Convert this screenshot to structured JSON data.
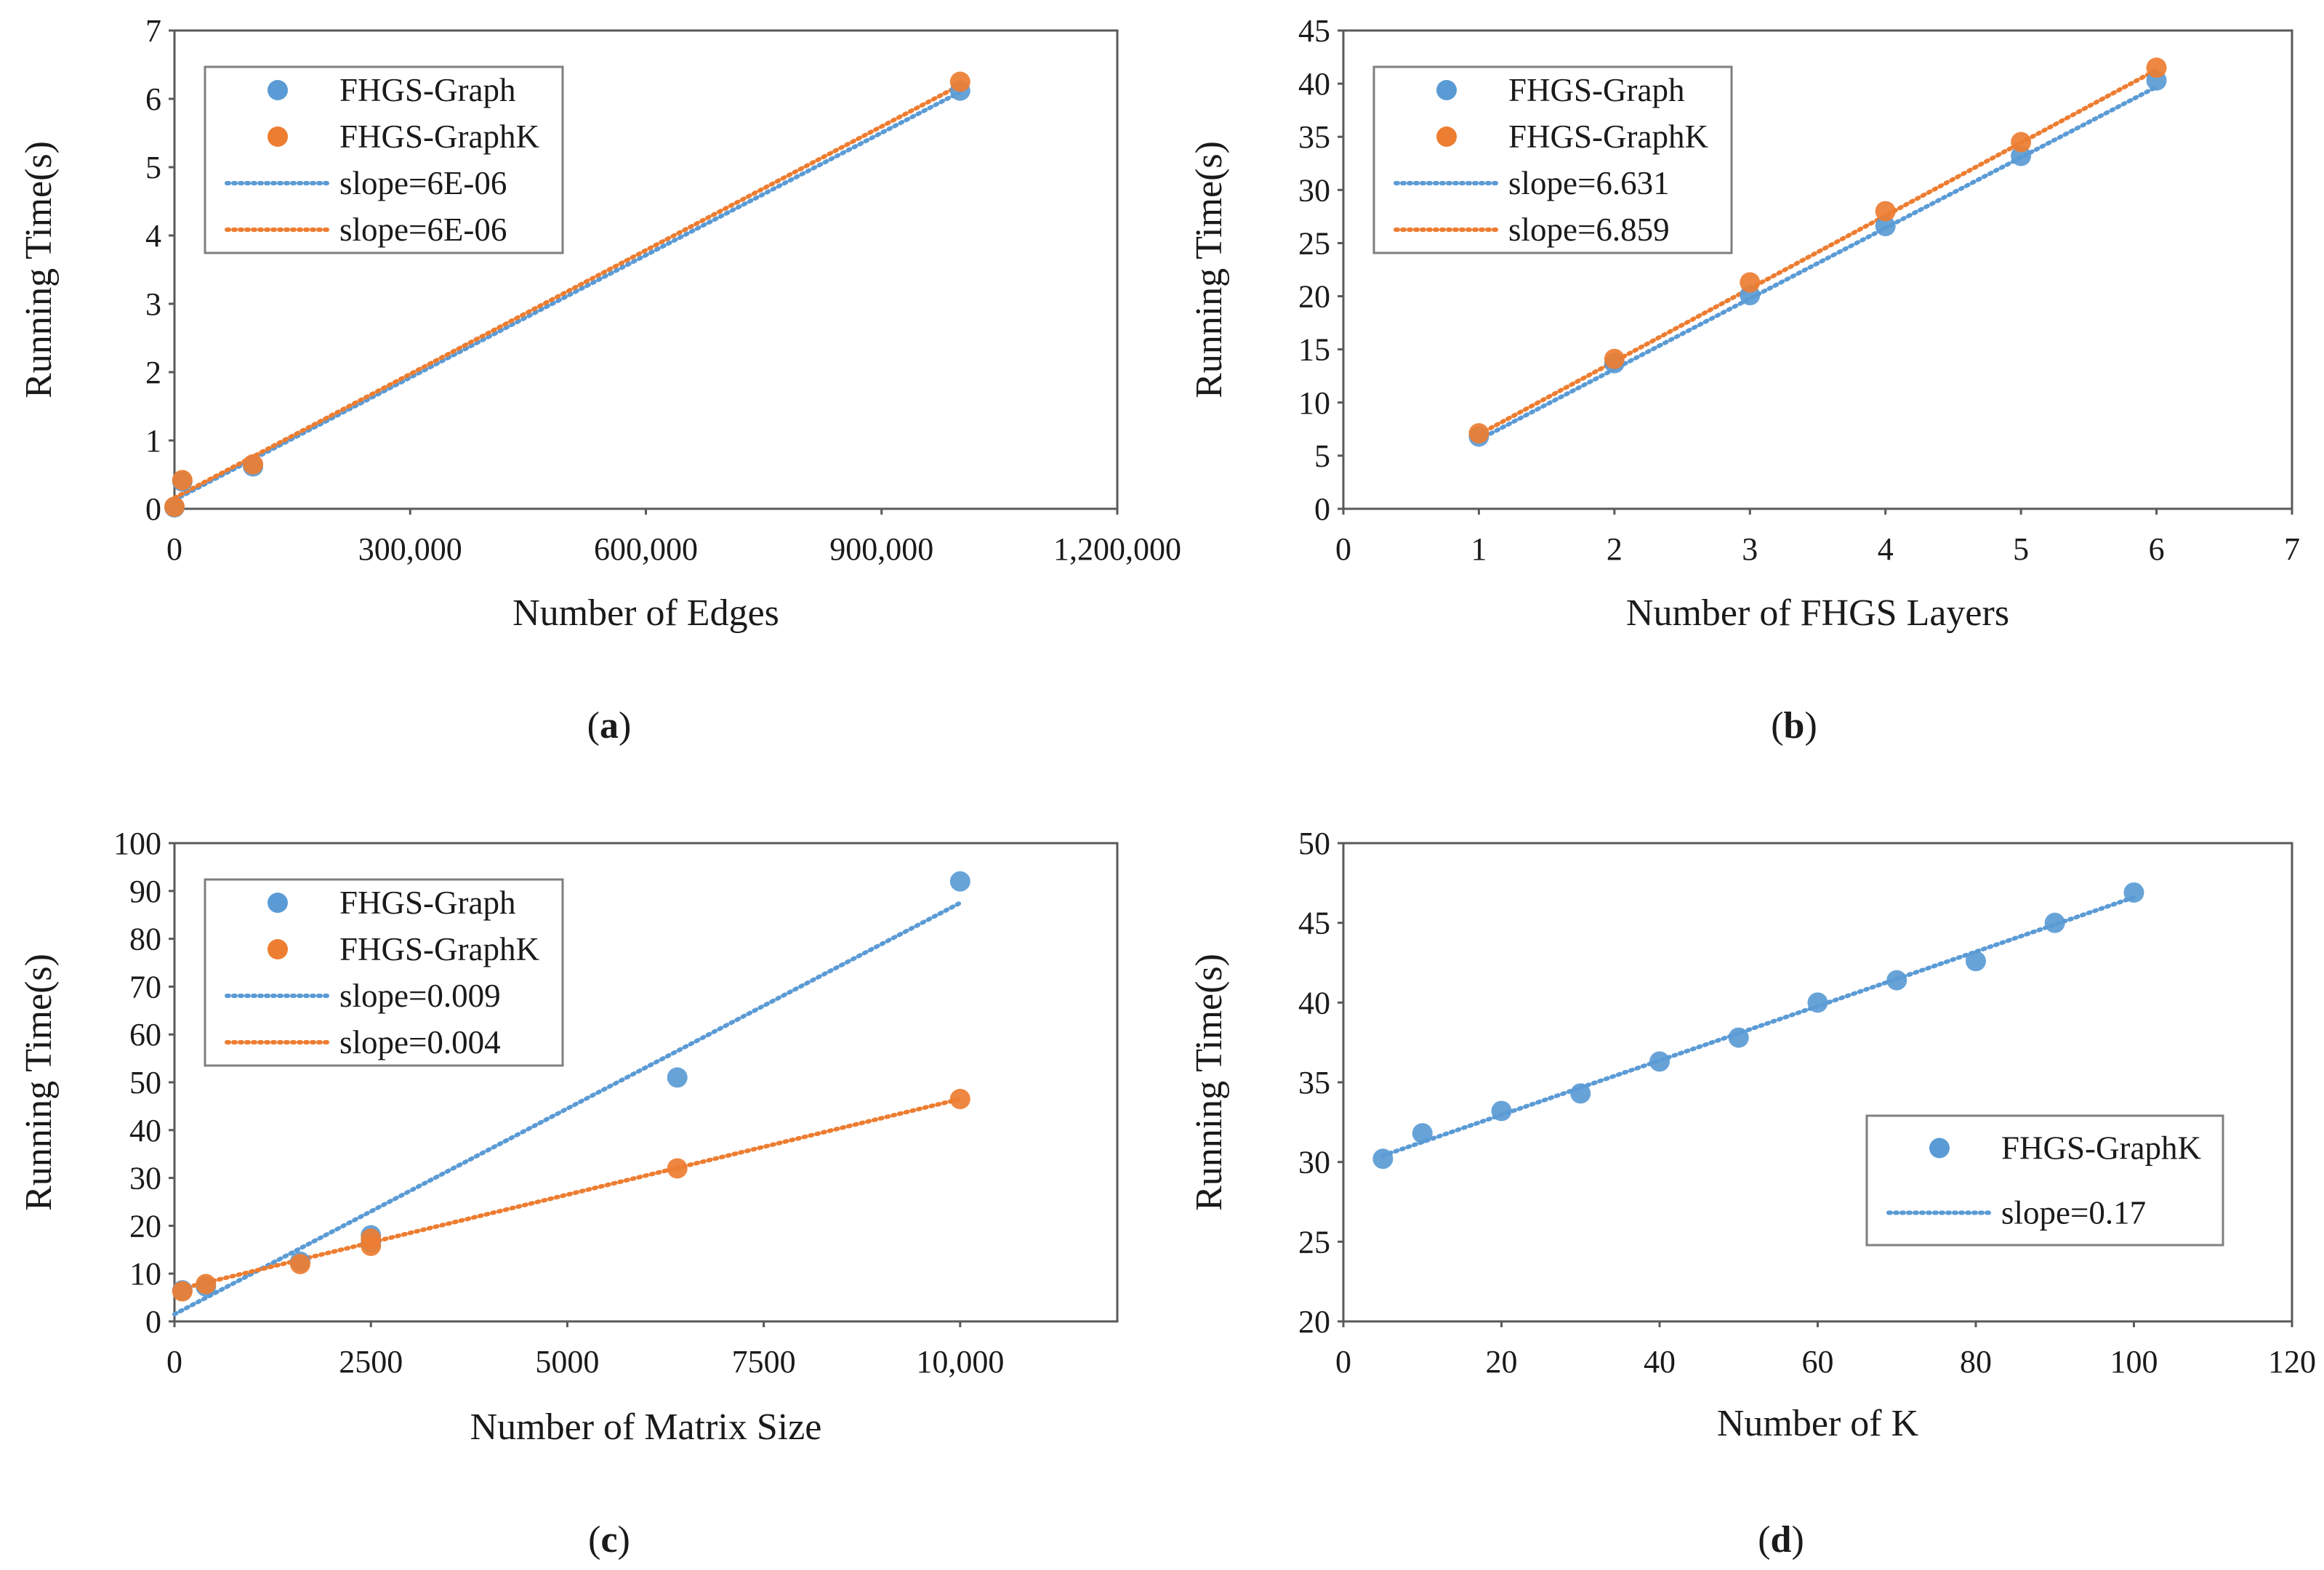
{
  "chart_data": [
    {
      "panel": "a",
      "caption": [
        "(",
        "a",
        ")"
      ],
      "type": "scatter",
      "xlabel": "Number of Edges",
      "ylabel": "Running Time(s)",
      "xlim": [
        0,
        1200000
      ],
      "ylim": [
        0,
        7
      ],
      "xticks": [
        0,
        300000,
        600000,
        900000,
        1200000
      ],
      "xtick_labels": [
        "0",
        "300,000",
        "600,000",
        "900,000",
        "1,200,000"
      ],
      "yticks": [
        0,
        1,
        2,
        3,
        4,
        5,
        6,
        7
      ],
      "ytick_labels": [
        "0",
        "1",
        "2",
        "3",
        "4",
        "5",
        "6",
        "7"
      ],
      "legend_position": "top-left",
      "series": [
        {
          "name": "FHGS-Graph",
          "color": "#5B9BD5",
          "x": [
            0,
            10000,
            100000,
            1000000
          ],
          "y": [
            0.02,
            0.4,
            0.62,
            6.12
          ]
        },
        {
          "name": "FHGS-GraphK",
          "color": "#ED7D31",
          "x": [
            0,
            10000,
            100000,
            1000000
          ],
          "y": [
            0.03,
            0.42,
            0.65,
            6.25
          ]
        }
      ],
      "trendlines": [
        {
          "label": "slope=6E-06",
          "color": "#5B9BD5",
          "x": [
            0,
            1000000
          ],
          "y": [
            0.13,
            6.1
          ]
        },
        {
          "label": "slope=6E-06",
          "color": "#ED7D31",
          "x": [
            0,
            1000000
          ],
          "y": [
            0.16,
            6.2
          ]
        }
      ]
    },
    {
      "panel": "b",
      "caption": [
        "(",
        "b",
        ")"
      ],
      "type": "scatter",
      "xlabel": "Number of FHGS Layers",
      "ylabel": "Running Time(s)",
      "xlim": [
        0,
        7
      ],
      "ylim": [
        0,
        45
      ],
      "xticks": [
        0,
        1,
        2,
        3,
        4,
        5,
        6,
        7
      ],
      "xtick_labels": [
        "0",
        "1",
        "2",
        "3",
        "4",
        "5",
        "6",
        "7"
      ],
      "yticks": [
        0,
        5,
        10,
        15,
        20,
        25,
        30,
        35,
        40,
        45
      ],
      "ytick_labels": [
        "0",
        "5",
        "10",
        "15",
        "20",
        "25",
        "30",
        "35",
        "40",
        "45"
      ],
      "legend_position": "top-left",
      "series": [
        {
          "name": "FHGS-Graph",
          "color": "#5B9BD5",
          "x": [
            1,
            2,
            3,
            4,
            5,
            6
          ],
          "y": [
            6.8,
            13.7,
            20.1,
            26.6,
            33.2,
            40.3
          ]
        },
        {
          "name": "FHGS-GraphK",
          "color": "#ED7D31",
          "x": [
            1,
            2,
            3,
            4,
            5,
            6
          ],
          "y": [
            7.1,
            14.1,
            21.3,
            28.0,
            34.5,
            41.5
          ]
        }
      ],
      "trendlines": [
        {
          "label": "slope=6.631",
          "color": "#5B9BD5",
          "x": [
            1,
            6
          ],
          "y": [
            6.5,
            39.7
          ]
        },
        {
          "label": "slope=6.859",
          "color": "#ED7D31",
          "x": [
            1,
            6
          ],
          "y": [
            7.0,
            41.3
          ]
        }
      ]
    },
    {
      "panel": "c",
      "caption": [
        "(",
        "c",
        ")"
      ],
      "type": "scatter",
      "xlabel": "Number of Matrix Size",
      "ylabel": "Running Time(s)",
      "xlim": [
        0,
        12000
      ],
      "ylim": [
        0,
        100
      ],
      "xticks": [
        0,
        2500,
        5000,
        7500,
        10000
      ],
      "xtick_labels": [
        "0",
        "2500",
        "5000",
        "7500",
        "10,000"
      ],
      "yticks": [
        0,
        10,
        20,
        30,
        40,
        50,
        60,
        70,
        80,
        90,
        100
      ],
      "ytick_labels": [
        "0",
        "10",
        "20",
        "30",
        "40",
        "50",
        "60",
        "70",
        "80",
        "90",
        "100"
      ],
      "legend_position": "top-left",
      "series": [
        {
          "name": "FHGS-Graph",
          "color": "#5B9BD5",
          "x": [
            100,
            400,
            1600,
            2500,
            2500,
            6400,
            10000
          ],
          "y": [
            6.5,
            7.3,
            12.5,
            16.5,
            18.0,
            51.0,
            92.0
          ]
        },
        {
          "name": "FHGS-GraphK",
          "color": "#ED7D31",
          "x": [
            100,
            400,
            1600,
            2500,
            2500,
            6400,
            10000
          ],
          "y": [
            6.3,
            7.8,
            12.0,
            15.8,
            17.3,
            32.0,
            46.5
          ]
        }
      ],
      "trendlines": [
        {
          "label": "slope=0.009",
          "color": "#5B9BD5",
          "x": [
            0,
            10000
          ],
          "y": [
            1.5,
            87.5
          ]
        },
        {
          "label": "slope=0.004",
          "color": "#ED7D31",
          "x": [
            0,
            10000
          ],
          "y": [
            6.5,
            46.5
          ]
        }
      ]
    },
    {
      "panel": "d",
      "caption": [
        "(",
        "d",
        ")"
      ],
      "type": "scatter",
      "xlabel": "Number of K",
      "ylabel": "Running Time(s)",
      "xlim": [
        0,
        120
      ],
      "ylim": [
        20,
        50
      ],
      "xticks": [
        0,
        20,
        40,
        60,
        80,
        100,
        120
      ],
      "xtick_labels": [
        "0",
        "20",
        "40",
        "60",
        "80",
        "100",
        "120"
      ],
      "yticks": [
        20,
        25,
        30,
        35,
        40,
        45,
        50
      ],
      "ytick_labels": [
        "20",
        "25",
        "30",
        "35",
        "40",
        "45",
        "50"
      ],
      "legend_position": "bottom-right",
      "series": [
        {
          "name": "FHGS-GraphK",
          "color": "#5B9BD5",
          "x": [
            5,
            10,
            20,
            30,
            40,
            50,
            60,
            70,
            80,
            90,
            100
          ],
          "y": [
            30.2,
            31.8,
            33.2,
            34.3,
            36.3,
            37.8,
            40.0,
            41.4,
            42.6,
            45.0,
            46.9
          ]
        }
      ],
      "trendlines": [
        {
          "label": "slope=0.17",
          "color": "#5B9BD5",
          "x": [
            5,
            100
          ],
          "y": [
            30.4,
            46.6
          ]
        }
      ]
    }
  ]
}
